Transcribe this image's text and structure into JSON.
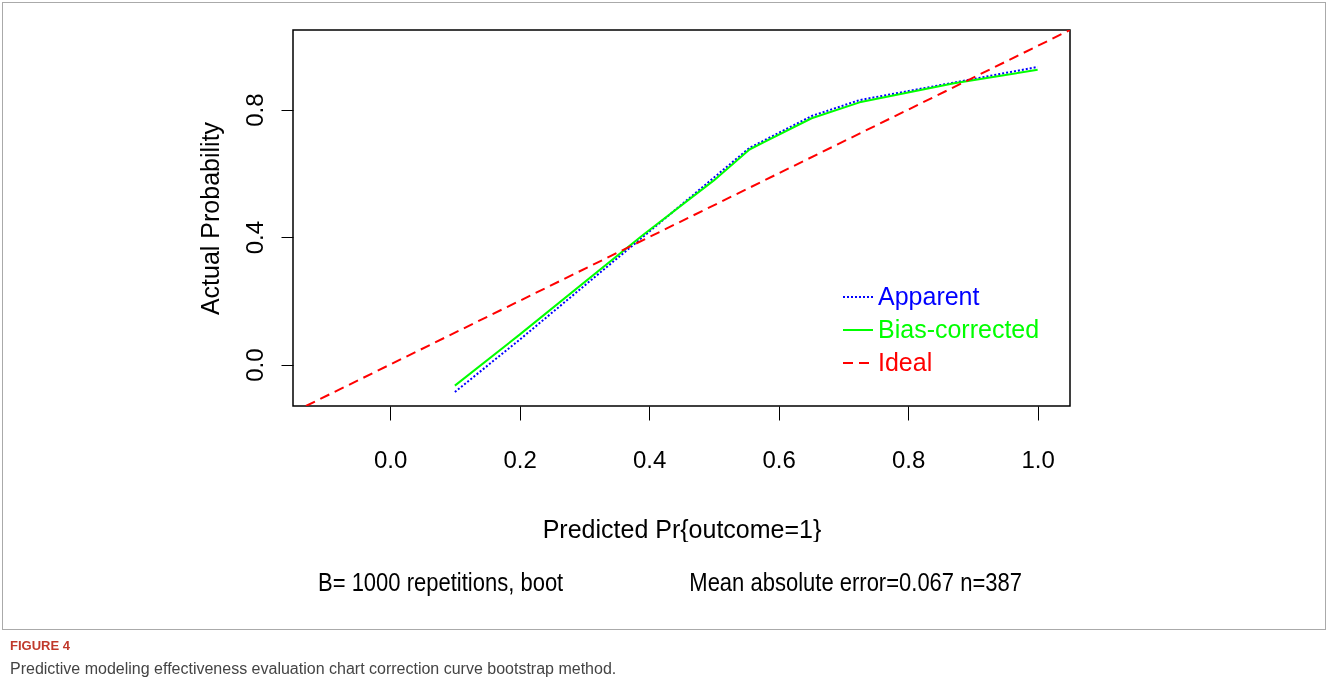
{
  "chart_data": {
    "type": "line",
    "xlabel": "Predicted Pr{outcome=1}",
    "ylabel": "Actual Probability",
    "xlim": [
      -0.15,
      1.05
    ],
    "ylim": [
      -0.13,
      1.05
    ],
    "xticks": [
      {
        "value": 0,
        "label": "0.0"
      },
      0.2,
      0.4,
      0.6,
      0.8,
      {
        "value": 1,
        "label": "1.0"
      }
    ],
    "yticks": [
      {
        "value": 0,
        "label": "0.0"
      },
      0.4,
      0.8
    ],
    "series": [
      {
        "name": "Apparent",
        "color": "#0000ff",
        "line_style": "dotted",
        "x": [
          0.1,
          0.2,
          0.39,
          0.555,
          0.651,
          0.725,
          0.871,
          1.0
        ],
        "values": [
          -0.086,
          0.078,
          0.4,
          0.68,
          0.78,
          0.83,
          0.885,
          0.934
        ]
      },
      {
        "name": "Bias-corrected",
        "color": "#00ff00",
        "line_style": "solid",
        "x": [
          0.1,
          0.2,
          0.39,
          0.5,
          0.555,
          0.651,
          0.725,
          0.871,
          1.0
        ],
        "values": [
          -0.066,
          0.094,
          0.406,
          0.578,
          0.675,
          0.773,
          0.823,
          0.883,
          0.925
        ]
      },
      {
        "name": "Ideal",
        "color": "#ff0000",
        "line_style": "dashed",
        "x": [
          -0.13,
          1.05
        ],
        "values": [
          -0.13,
          1.05
        ]
      }
    ],
    "legend": "bottom right",
    "grid": false,
    "annotations": [
      "B= 1000 repetitions, boot",
      "Mean absolute error=0.067 n=387",
      "FIGURE 4",
      "Predictive modeling effectiveness evaluation chart correction curve bootstrap method."
    ]
  }
}
